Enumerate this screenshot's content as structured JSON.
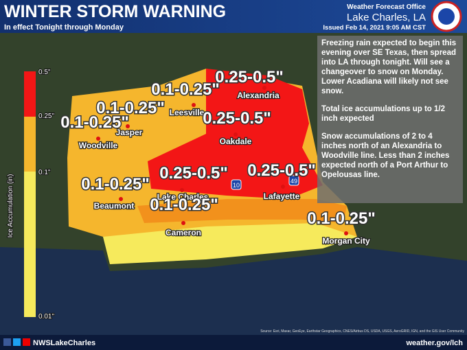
{
  "header": {
    "title": "WINTER STORM WARNING",
    "subtitle": "In effect Tonight through Monday",
    "office": "Weather Forecast Office",
    "location": "Lake Charles, LA",
    "issued": "Issued Feb 14, 2021 9:05 AM CST"
  },
  "legend": {
    "title": "Ice Accumulation (in)",
    "labels": [
      "0.5\"",
      "0.25\"",
      "0.1\"",
      "0.01\""
    ]
  },
  "zones": [
    "0.25-0.5\"",
    "0.1-0.25\"",
    "0.1-0.25\"",
    "0.1-0.25\"",
    "0.25-0.5\"",
    "0.25-0.5\"",
    "0.25-0.5\"",
    "0.1-0.25\"",
    "0.1-0.25\"",
    "0.1-0.25\""
  ],
  "cities": [
    "Alexandria",
    "Leesville",
    "Jasper",
    "Woodville",
    "Oakdale",
    "Beaumont",
    "Lake Charles",
    "Lafayette",
    "Cameron",
    "Morgan City"
  ],
  "highways": [
    "49",
    "10"
  ],
  "text_box": [
    "Freezing rain expected to begin this evening over SE Texas, then spread into LA through tonight. Will see a changeover to snow on Monday. Lower Acadiana will likely not see snow.",
    "Total ice accumulations up to 1/2 inch expected",
    "Snow accumulations of 2 to 4 inches north of an Alexandria to Woodville line. Less than 2 inches expected north of a Port Arthur to Opelousas line."
  ],
  "footer": {
    "social": "NWSLakeCharles",
    "url": "weather.gov/lch",
    "source": "Source: Esri, Maxar, GeoEye, Earthstar Geographics, CNES/Airbus DS, USDA, USGS, AeroGRID, IGN, and the GIS User Community"
  }
}
